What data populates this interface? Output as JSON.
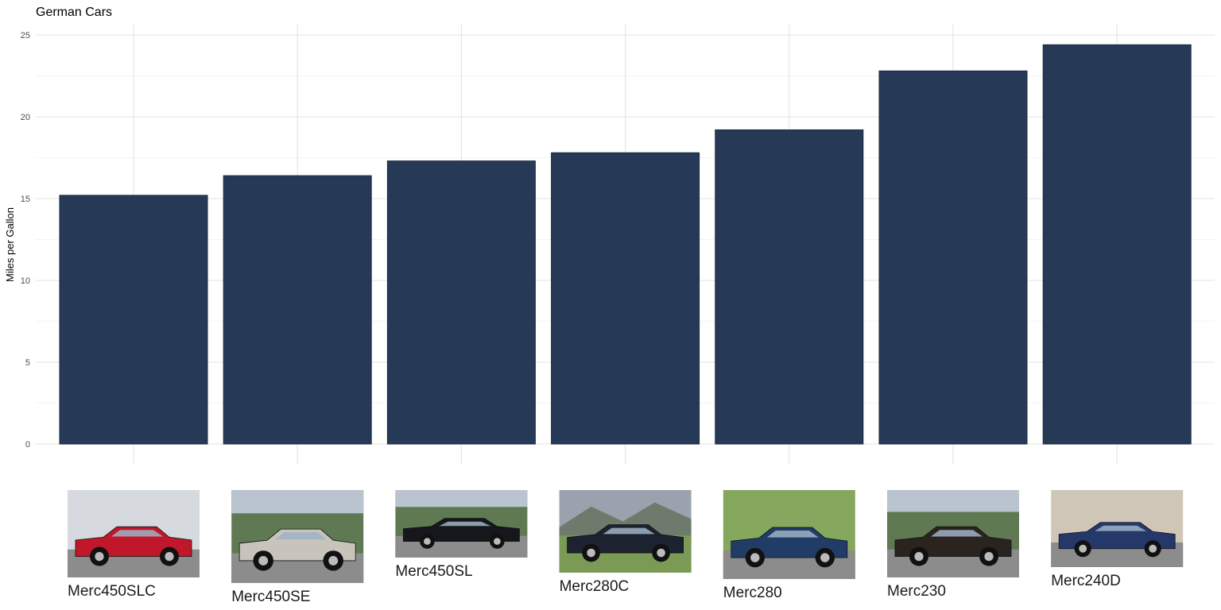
{
  "chart_data": {
    "type": "bar",
    "title": "German Cars",
    "ylabel": "Miles per Gallon",
    "xlabel": "",
    "ylim": [
      0,
      25
    ],
    "yticks": [
      "0",
      "5",
      "10",
      "15",
      "20",
      "25"
    ],
    "grid": true,
    "categories": [
      "Merc450SLC",
      "Merc450SE",
      "Merc450SL",
      "Merc280C",
      "Merc280",
      "Merc230",
      "Merc240D"
    ],
    "values": [
      15.2,
      16.4,
      17.3,
      17.8,
      19.2,
      22.8,
      24.4
    ],
    "bar_color": "#263a57",
    "car_photos": [
      {
        "label": "Merc450SLC",
        "car_color": "#c0182a",
        "scene": "sky"
      },
      {
        "label": "Merc450SE",
        "car_color": "#c8c4bb",
        "scene": "trees"
      },
      {
        "label": "Merc450SL",
        "car_color": "#15171c",
        "scene": "trees"
      },
      {
        "label": "Merc280C",
        "car_color": "#1c2230",
        "scene": "hills"
      },
      {
        "label": "Merc280",
        "car_color": "#223c68",
        "scene": "grass"
      },
      {
        "label": "Merc230",
        "car_color": "#2a2420",
        "scene": "trees"
      },
      {
        "label": "Merc240D",
        "car_color": "#25386a",
        "scene": "wall"
      }
    ]
  }
}
